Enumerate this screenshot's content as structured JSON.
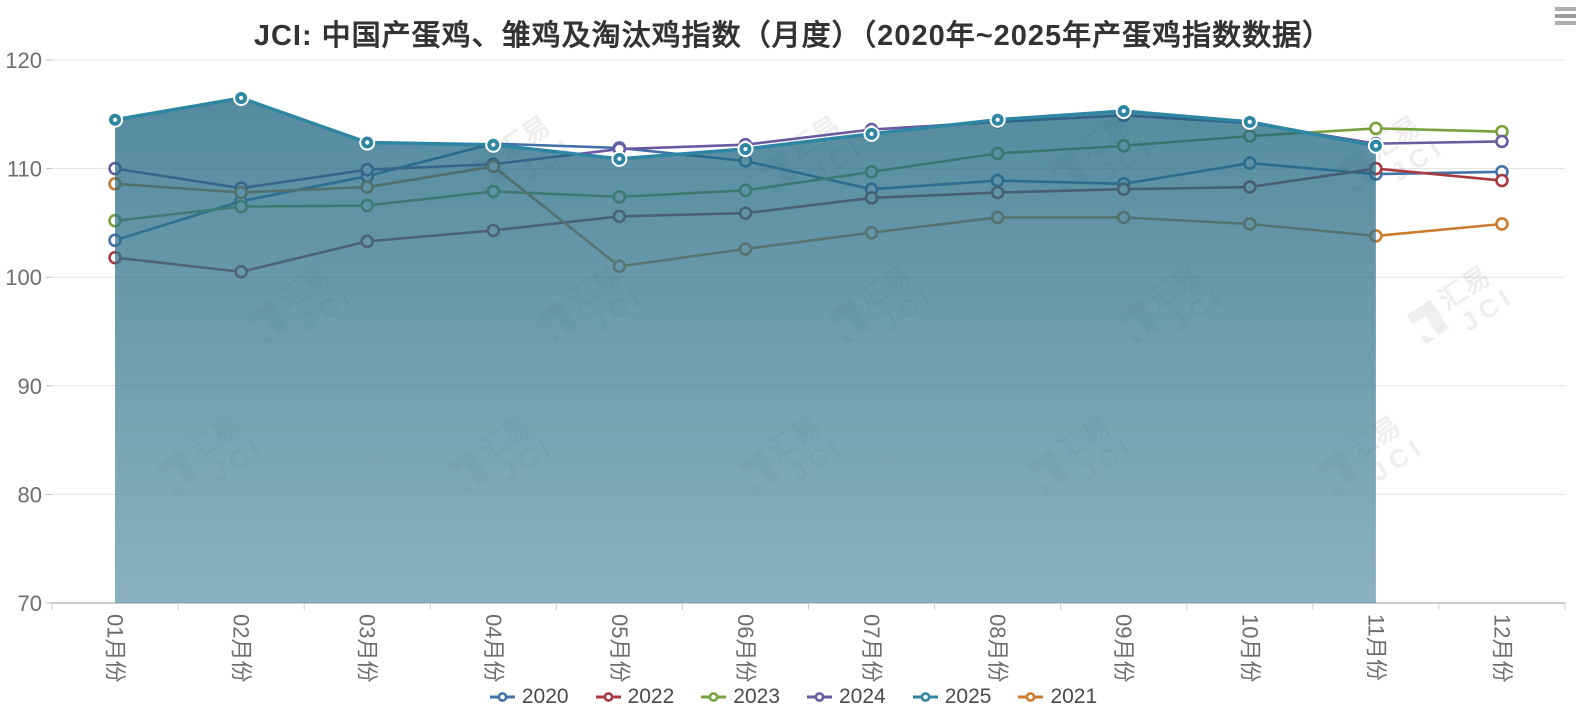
{
  "title": "JCI: 中国产蛋鸡、雏鸡及淘汰鸡指数（月度）（2020年~2025年产蛋鸡指数数据）",
  "menu": {
    "icon": "hamburger-menu"
  },
  "watermark": {
    "line1": "汇易",
    "line2": "JCI"
  },
  "chart_data": {
    "type": "line",
    "title": "JCI: 中国产蛋鸡、雏鸡及淘汰鸡指数（月度）（2020年~2025年产蛋鸡指数数据）",
    "categories": [
      "01月份",
      "02月份",
      "03月份",
      "04月份",
      "05月份",
      "06月份",
      "07月份",
      "08月份",
      "09月份",
      "10月份",
      "11月份",
      "12月份"
    ],
    "series": [
      {
        "name": "2020",
        "color": "#4272a7",
        "area": false,
        "values": [
          103.4,
          107.0,
          109.3,
          112.3,
          111.9,
          110.7,
          108.1,
          108.9,
          108.6,
          110.5,
          109.5,
          109.7
        ]
      },
      {
        "name": "2022",
        "color": "#a53a40",
        "area": false,
        "values": [
          101.8,
          100.5,
          103.3,
          104.3,
          105.6,
          105.9,
          107.3,
          107.8,
          108.1,
          108.3,
          110.0,
          108.9
        ]
      },
      {
        "name": "2023",
        "color": "#79a23e",
        "area": false,
        "values": [
          105.2,
          106.5,
          106.6,
          107.9,
          107.4,
          108.0,
          109.7,
          111.4,
          112.1,
          113.0,
          113.7,
          113.4
        ]
      },
      {
        "name": "2024",
        "color": "#6a5a9f",
        "area": false,
        "values": [
          110.0,
          108.2,
          109.9,
          110.4,
          111.8,
          112.2,
          113.6,
          114.3,
          114.9,
          114.2,
          112.3,
          112.5
        ]
      },
      {
        "name": "2025",
        "color": "#2f86a2",
        "area": true,
        "area_fill_top": "rgba(26,98,125,0.74)",
        "area_fill_bottom": "rgba(98,150,166,0.74)",
        "values": [
          114.5,
          116.5,
          112.4,
          112.2,
          110.9,
          111.8,
          113.2,
          114.5,
          115.3,
          114.3,
          112.1,
          null
        ]
      },
      {
        "name": "2021",
        "color": "#cb7c2e",
        "area": false,
        "values": [
          108.6,
          107.8,
          108.3,
          110.2,
          101.0,
          102.6,
          104.1,
          105.5,
          105.5,
          104.9,
          103.8,
          104.9
        ]
      }
    ],
    "xlabel": "",
    "ylabel": "",
    "ylim": [
      70,
      120
    ],
    "yticks": [
      70,
      80,
      90,
      100,
      110,
      120
    ],
    "grid": true,
    "legend_position": "bottom",
    "legend_order": [
      "2020",
      "2022",
      "2023",
      "2024",
      "2025",
      "2021"
    ]
  }
}
